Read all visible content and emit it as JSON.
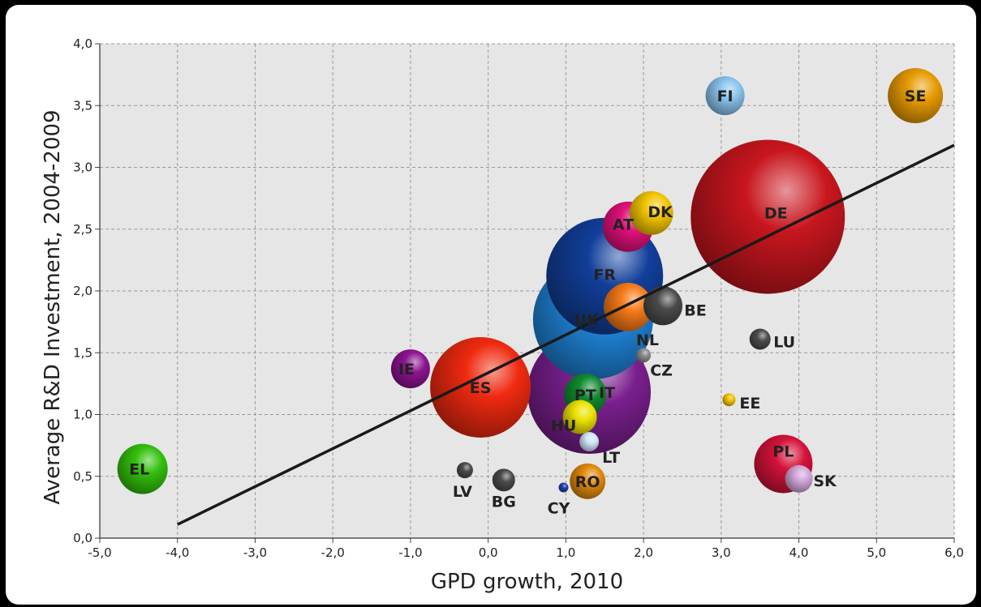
{
  "chart_data": {
    "type": "scatter",
    "title": "",
    "xlabel": "GPD growth, 2010",
    "ylabel": "Average R&D Investment, 2004-2009",
    "xlim": [
      -5.0,
      6.0
    ],
    "ylim": [
      0.0,
      4.0
    ],
    "xticks": [
      "-5,0",
      "-4,0",
      "-3,0",
      "-2,0",
      "-1,0",
      "0,0",
      "1,0",
      "2,0",
      "3,0",
      "4,0",
      "5,0",
      "6,0"
    ],
    "yticks": [
      "0,0",
      "0,5",
      "1,0",
      "1,5",
      "2,0",
      "2,5",
      "3,0",
      "3,5",
      "4,0"
    ],
    "grid": true,
    "legend": "none",
    "trend_line": {
      "x": [
        -4.0,
        6.0
      ],
      "y": [
        0.11,
        3.18
      ]
    },
    "points": [
      {
        "label": "DE",
        "x": 3.6,
        "y": 2.6,
        "size": 95,
        "color": "#c8161e"
      },
      {
        "label": "FR",
        "x": 1.5,
        "y": 2.12,
        "size": 72,
        "color": "#123f9a"
      },
      {
        "label": "UK",
        "x": 1.35,
        "y": 1.77,
        "size": 74,
        "color": "#1f83d6"
      },
      {
        "label": "IT",
        "x": 1.3,
        "y": 1.18,
        "size": 76,
        "color": "#7a1f8e"
      },
      {
        "label": "ES",
        "x": -0.1,
        "y": 1.22,
        "size": 62,
        "color": "#f02a10"
      },
      {
        "label": "NL",
        "x": 1.8,
        "y": 1.87,
        "size": 30,
        "color": "#f57a18"
      },
      {
        "label": "BE",
        "x": 2.25,
        "y": 1.88,
        "size": 24,
        "color": "#4a4a4a"
      },
      {
        "label": "DK",
        "x": 2.1,
        "y": 2.63,
        "size": 27,
        "color": "#f2c400"
      },
      {
        "label": "AT",
        "x": 1.8,
        "y": 2.52,
        "size": 31,
        "color": "#e2107a"
      },
      {
        "label": "FI",
        "x": 3.05,
        "y": 3.58,
        "size": 24,
        "color": "#88c2ec"
      },
      {
        "label": "SE",
        "x": 5.5,
        "y": 3.58,
        "size": 34,
        "color": "#e79a00"
      },
      {
        "label": "IE",
        "x": -1.0,
        "y": 1.37,
        "size": 24,
        "color": "#8c1490"
      },
      {
        "label": "EL",
        "x": -4.45,
        "y": 0.56,
        "size": 31,
        "color": "#33c00c"
      },
      {
        "label": "PL",
        "x": 3.8,
        "y": 0.6,
        "size": 36,
        "color": "#d41239"
      },
      {
        "label": "SK",
        "x": 4.0,
        "y": 0.48,
        "size": 17,
        "color": "#d2a6d8"
      },
      {
        "label": "PT",
        "x": 1.25,
        "y": 1.16,
        "size": 26,
        "color": "#108a30"
      },
      {
        "label": "HU",
        "x": 1.18,
        "y": 0.98,
        "size": 21,
        "color": "#ece100"
      },
      {
        "label": "CZ",
        "x": 2.0,
        "y": 1.48,
        "size": 9,
        "color": "#8a8a8a"
      },
      {
        "label": "LU",
        "x": 3.5,
        "y": 1.61,
        "size": 13,
        "color": "#4a4a4a"
      },
      {
        "label": "EE",
        "x": 3.1,
        "y": 1.12,
        "size": 8,
        "color": "#f2c000"
      },
      {
        "label": "LT",
        "x": 1.3,
        "y": 0.78,
        "size": 12,
        "color": "#cfe4f7"
      },
      {
        "label": "LV",
        "x": -0.3,
        "y": 0.55,
        "size": 10,
        "color": "#4a4a4a"
      },
      {
        "label": "BG",
        "x": 0.2,
        "y": 0.47,
        "size": 14,
        "color": "#4a4a4a"
      },
      {
        "label": "CY",
        "x": 0.97,
        "y": 0.41,
        "size": 6,
        "color": "#1a3fa8"
      },
      {
        "label": "RO",
        "x": 1.28,
        "y": 0.46,
        "size": 22,
        "color": "#e0880a"
      }
    ]
  }
}
